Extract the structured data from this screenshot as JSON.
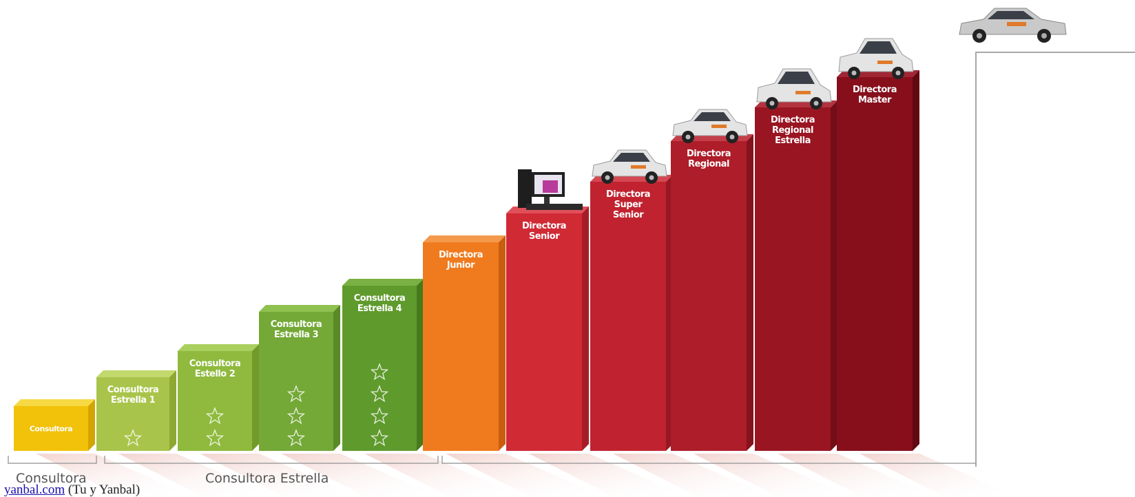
{
  "steps": [
    {
      "lines": [
        "Consultora"
      ],
      "stars": 0,
      "level": 1,
      "color": "#f2c20a",
      "top": "#f7d944",
      "side": "#d4a400",
      "icon": "none"
    },
    {
      "lines": [
        "Consultora",
        "Estrella 1"
      ],
      "stars": 1,
      "level": 2,
      "color": "#a9c44a",
      "top": "#c2d96d",
      "side": "#8ea834",
      "icon": "none"
    },
    {
      "lines": [
        "Consultora",
        "Estello 2"
      ],
      "stars": 2,
      "level": 3,
      "color": "#8fba3e",
      "top": "#a9cf5e",
      "side": "#729a2a",
      "icon": "none"
    },
    {
      "lines": [
        "Consultora",
        "Estrella 3"
      ],
      "stars": 3,
      "level": 4,
      "color": "#74a837",
      "top": "#8ec14f",
      "side": "#5a8a25",
      "icon": "none"
    },
    {
      "lines": [
        "Consultora",
        "Estrella 4"
      ],
      "stars": 4,
      "level": 5,
      "color": "#5f9a2d",
      "top": "#7ab144",
      "side": "#467a1c",
      "icon": "none"
    },
    {
      "lines": [
        "Directora",
        "Junior"
      ],
      "stars": 0,
      "level": 6,
      "color": "#f07a1e",
      "top": "#f59a4c",
      "side": "#c95e0e",
      "icon": "none"
    },
    {
      "lines": [
        "Directora",
        "Senior"
      ],
      "stars": 0,
      "level": 7,
      "color": "#d02a35",
      "top": "#e0505a",
      "side": "#a81c26",
      "icon": "computer-icon"
    },
    {
      "lines": [
        "Directora",
        "Super",
        "Senior"
      ],
      "stars": 0,
      "level": 8,
      "color": "#c0232f",
      "top": "#d44852",
      "side": "#961822",
      "icon": "car-icon"
    },
    {
      "lines": [
        "Directora",
        "Regional"
      ],
      "stars": 0,
      "level": 9,
      "color": "#ae1d2a",
      "top": "#c43e49",
      "side": "#85131d",
      "icon": "car-icon"
    },
    {
      "lines": [
        "Directora",
        "Regional",
        "Estrella"
      ],
      "stars": 0,
      "level": 10,
      "color": "#9a1522",
      "top": "#b33340",
      "side": "#730d17",
      "icon": "suv-icon"
    },
    {
      "lines": [
        "Directora",
        "Master"
      ],
      "stars": 0,
      "level": 11,
      "color": "#860f1b",
      "top": "#a02634",
      "side": "#620811",
      "icon": "pickup-icon"
    }
  ],
  "top_reward_icon": "sedan-icon",
  "groups": {
    "consultora": "Consultora",
    "estrella": "Consultora Estrella"
  },
  "footer": {
    "link": "yanbal.com",
    "text": " (Tu y Yanbal)"
  }
}
